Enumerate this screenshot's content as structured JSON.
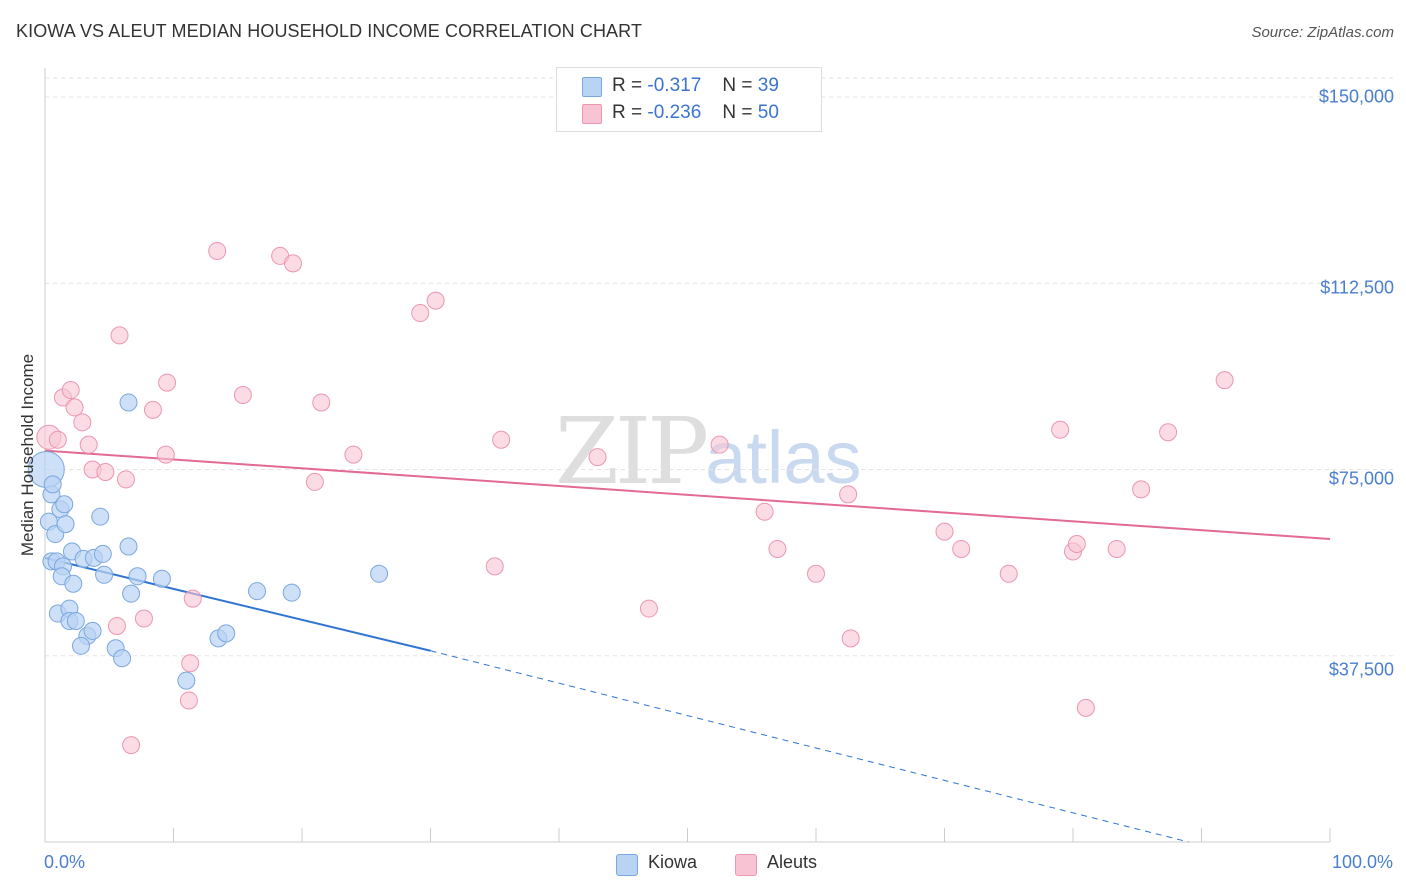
{
  "header": {
    "title": "KIOWA VS ALEUT MEDIAN HOUSEHOLD INCOME CORRELATION CHART",
    "source": "Source: ZipAtlas.com"
  },
  "legend": {
    "rows": [
      {
        "r_label": "R =",
        "r_value": "-0.317",
        "n_label": "N =",
        "n_value": "39"
      },
      {
        "r_label": "R =",
        "r_value": "-0.236",
        "n_label": "N =",
        "n_value": "50"
      }
    ]
  },
  "bottom_legend": [
    "Kiowa",
    "Aleuts"
  ],
  "watermark": {
    "zip": "ZIP",
    "atlas": "atlas"
  },
  "colors": {
    "kiowa_fill": "#b9d3f3",
    "kiowa_stroke": "#7aa7df",
    "kiowa_line": "#2f74d0",
    "aleuts_fill": "#f8c4d4",
    "aleuts_stroke": "#ec96b2",
    "aleuts_line": "#e26a93",
    "axis_label": "#4a7fcf",
    "grid": "#e3e3e3"
  },
  "chart_data": {
    "type": "scatter",
    "title": "KIOWA VS ALEUT MEDIAN HOUSEHOLD INCOME CORRELATION CHART",
    "xlabel": "",
    "ylabel": "Median Household Income",
    "x_tick_labels": [
      "0.0%",
      "100.0%"
    ],
    "y_tick_labels": [
      "$150,000",
      "$112,500",
      "$75,000",
      "$37,500"
    ],
    "xlim": [
      0,
      100
    ],
    "ylim": [
      0,
      155000
    ],
    "y_ticks": [
      150000,
      112500,
      75000,
      37500
    ],
    "grid": true,
    "legend_position": "top-center",
    "series": [
      {
        "name": "Kiowa",
        "r": -0.317,
        "n": 39,
        "trend": {
          "x_start": 0,
          "y_start": 57200,
          "x_solid_end": 30,
          "y_solid_end": 38500,
          "x_dash_end": 89,
          "y_dash_end": 0
        },
        "points": [
          [
            0.1,
            75000
          ],
          [
            0.5,
            70000
          ],
          [
            0.3,
            64500
          ],
          [
            0.6,
            72000
          ],
          [
            0.8,
            62000
          ],
          [
            1.2,
            67000
          ],
          [
            1.5,
            68000
          ],
          [
            1.6,
            64000
          ],
          [
            0.5,
            56500
          ],
          [
            0.9,
            56500
          ],
          [
            1.4,
            55500
          ],
          [
            2.1,
            58500
          ],
          [
            3.0,
            57000
          ],
          [
            3.8,
            57200
          ],
          [
            4.5,
            58000
          ],
          [
            6.5,
            59500
          ],
          [
            1.3,
            53500
          ],
          [
            2.2,
            52000
          ],
          [
            4.6,
            53800
          ],
          [
            7.2,
            53500
          ],
          [
            9.1,
            53000
          ],
          [
            6.7,
            50000
          ],
          [
            16.5,
            50500
          ],
          [
            19.2,
            50200
          ],
          [
            26.0,
            54000
          ],
          [
            1.0,
            46000
          ],
          [
            1.9,
            47000
          ],
          [
            1.9,
            44500
          ],
          [
            2.4,
            44500
          ],
          [
            3.3,
            41500
          ],
          [
            3.7,
            42500
          ],
          [
            2.8,
            39500
          ],
          [
            5.5,
            39000
          ],
          [
            6.0,
            37000
          ],
          [
            13.5,
            41000
          ],
          [
            14.1,
            42000
          ],
          [
            11.0,
            32500
          ],
          [
            6.5,
            88500
          ],
          [
            4.3,
            65500
          ]
        ]
      },
      {
        "name": "Aleuts",
        "r": -0.236,
        "n": 50,
        "trend": {
          "x_start": 0,
          "y_start": 78800,
          "x_end": 100,
          "y_end": 61000
        },
        "points": [
          [
            0.3,
            81500
          ],
          [
            1.0,
            81000
          ],
          [
            1.4,
            89500
          ],
          [
            2.0,
            91000
          ],
          [
            2.3,
            87500
          ],
          [
            2.9,
            84500
          ],
          [
            3.4,
            80000
          ],
          [
            3.7,
            75000
          ],
          [
            4.7,
            74500
          ],
          [
            6.3,
            73000
          ],
          [
            8.4,
            87000
          ],
          [
            9.4,
            78000
          ],
          [
            9.5,
            92500
          ],
          [
            11.3,
            36000
          ],
          [
            11.2,
            28500
          ],
          [
            11.5,
            49000
          ],
          [
            5.8,
            102000
          ],
          [
            7.7,
            45000
          ],
          [
            5.6,
            43500
          ],
          [
            6.7,
            19500
          ],
          [
            13.4,
            119000
          ],
          [
            15.4,
            90000
          ],
          [
            18.3,
            118000
          ],
          [
            19.3,
            116500
          ],
          [
            21.0,
            72500
          ],
          [
            21.5,
            88500
          ],
          [
            24.0,
            78000
          ],
          [
            29.2,
            106500
          ],
          [
            30.4,
            109000
          ],
          [
            35.0,
            55500
          ],
          [
            35.5,
            81000
          ],
          [
            43.0,
            77500
          ],
          [
            47.0,
            47000
          ],
          [
            52.5,
            80000
          ],
          [
            56.0,
            66500
          ],
          [
            57.0,
            59000
          ],
          [
            60.0,
            54000
          ],
          [
            62.5,
            70000
          ],
          [
            62.7,
            41000
          ],
          [
            70.0,
            62500
          ],
          [
            71.3,
            59000
          ],
          [
            75.0,
            54000
          ],
          [
            79.0,
            83000
          ],
          [
            80.0,
            58500
          ],
          [
            80.3,
            60000
          ],
          [
            81.0,
            27000
          ],
          [
            83.4,
            59000
          ],
          [
            85.3,
            71000
          ],
          [
            87.4,
            82500
          ],
          [
            91.8,
            93000
          ]
        ]
      }
    ]
  }
}
